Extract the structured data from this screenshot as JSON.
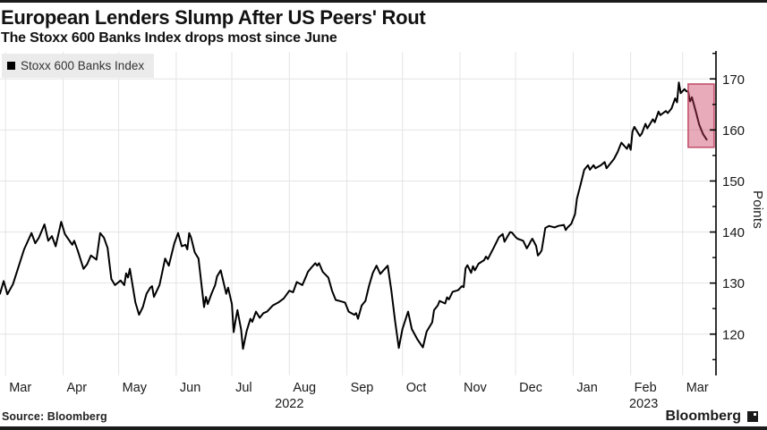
{
  "header": {
    "title": "European Lenders Slump After US Peers' Rout",
    "subtitle": "The Stoxx 600 Banks Index drops most since June"
  },
  "legend": {
    "label": "Stoxx 600 Banks Index",
    "marker_color": "#000000"
  },
  "footer": {
    "source": "Source: Bloomberg",
    "brand": "Bloomberg"
  },
  "colors": {
    "line": "#000000",
    "grid": "#e4e4e4",
    "axis": "#000000",
    "tick_text": "#1a1a1a",
    "legend_bg": "#ebebeb",
    "rule": "#1b1b1b",
    "highlight_fill": "#c8385a",
    "highlight_stroke": "#bf4a66"
  },
  "chart_data": {
    "type": "line",
    "title": "European Lenders Slump After US Peers' Rout",
    "subtitle": "The Stoxx 600 Banks Index drops most since June",
    "xlabel": "",
    "ylabel": "Points",
    "legend_position": "top-left",
    "grid": "horizontal major gridlines + monthly vertical gridlines",
    "x_range": [
      "2022-02-26",
      "2023-03-19"
    ],
    "ylim": [
      111.9,
      175.3
    ],
    "yticks_major": [
      120,
      130,
      140,
      150,
      160,
      170
    ],
    "yticks_minor": [
      115,
      125,
      135,
      145,
      155,
      165,
      175
    ],
    "x_tick_labels": [
      "Mar",
      "Apr",
      "May",
      "Jun",
      "Jul",
      "Aug",
      "Sep",
      "Oct",
      "Nov",
      "Dec",
      "Jan",
      "Feb",
      "Mar"
    ],
    "year_labels": [
      {
        "label": "2022",
        "x_date": "2022-08-01"
      },
      {
        "label": "2023",
        "x_date": "2023-02-08"
      }
    ],
    "highlight_box": {
      "x_start": "2023-03-04",
      "x_end": "2023-03-18",
      "y_top": 169.0,
      "y_bottom": 156.6,
      "fill": "#c8385a",
      "fill_opacity": 0.42,
      "stroke": "#bf4a66"
    },
    "series": [
      {
        "name": "Stoxx 600 Banks Index",
        "color": "#000000",
        "points": [
          [
            "2022-02-26",
            127.9
          ],
          [
            "2022-02-28",
            130.4
          ],
          [
            "2022-03-02",
            127.8
          ],
          [
            "2022-03-05",
            129.8
          ],
          [
            "2022-03-08",
            133.2
          ],
          [
            "2022-03-11",
            136.6
          ],
          [
            "2022-03-15",
            139.8
          ],
          [
            "2022-03-17",
            137.8
          ],
          [
            "2022-03-19",
            138.9
          ],
          [
            "2022-03-22",
            141.5
          ],
          [
            "2022-03-24",
            138.3
          ],
          [
            "2022-03-26",
            139.2
          ],
          [
            "2022-03-28",
            137.2
          ],
          [
            "2022-03-31",
            142.0
          ],
          [
            "2022-04-02",
            139.6
          ],
          [
            "2022-04-05",
            138.0
          ],
          [
            "2022-04-06",
            137.5
          ],
          [
            "2022-04-07",
            138.3
          ],
          [
            "2022-04-09",
            136.3
          ],
          [
            "2022-04-12",
            132.8
          ],
          [
            "2022-04-14",
            133.7
          ],
          [
            "2022-04-16",
            135.4
          ],
          [
            "2022-04-19",
            134.6
          ],
          [
            "2022-04-21",
            139.8
          ],
          [
            "2022-04-23",
            138.9
          ],
          [
            "2022-04-25",
            136.9
          ],
          [
            "2022-04-27",
            130.8
          ],
          [
            "2022-04-29",
            129.6
          ],
          [
            "2022-05-02",
            130.5
          ],
          [
            "2022-05-04",
            129.6
          ],
          [
            "2022-05-05",
            131.9
          ],
          [
            "2022-05-06",
            131.1
          ],
          [
            "2022-05-07",
            132.8
          ],
          [
            "2022-05-10",
            126.2
          ],
          [
            "2022-05-12",
            123.8
          ],
          [
            "2022-05-14",
            125.3
          ],
          [
            "2022-05-16",
            127.9
          ],
          [
            "2022-05-18",
            129.1
          ],
          [
            "2022-05-19",
            129.4
          ],
          [
            "2022-05-20",
            127.3
          ],
          [
            "2022-05-23",
            129.6
          ],
          [
            "2022-05-24",
            131.3
          ],
          [
            "2022-05-26",
            134.8
          ],
          [
            "2022-05-28",
            133.4
          ],
          [
            "2022-05-31",
            137.8
          ],
          [
            "2022-06-02",
            139.8
          ],
          [
            "2022-06-04",
            137.2
          ],
          [
            "2022-06-06",
            137.5
          ],
          [
            "2022-06-07",
            136.6
          ],
          [
            "2022-06-08",
            139.8
          ],
          [
            "2022-06-09",
            138.9
          ],
          [
            "2022-06-11",
            136.0
          ],
          [
            "2022-06-13",
            134.8
          ],
          [
            "2022-06-16",
            125.3
          ],
          [
            "2022-06-17",
            127.3
          ],
          [
            "2022-06-18",
            125.9
          ],
          [
            "2022-06-20",
            127.9
          ],
          [
            "2022-06-22",
            129.6
          ],
          [
            "2022-06-23",
            131.3
          ],
          [
            "2022-06-25",
            132.5
          ],
          [
            "2022-06-28",
            127.9
          ],
          [
            "2022-06-29",
            129.1
          ],
          [
            "2022-07-01",
            125.9
          ],
          [
            "2022-07-02",
            120.4
          ],
          [
            "2022-07-03",
            122.7
          ],
          [
            "2022-07-04",
            124.7
          ],
          [
            "2022-07-06",
            120.9
          ],
          [
            "2022-07-07",
            117.1
          ],
          [
            "2022-07-09",
            120.6
          ],
          [
            "2022-07-11",
            123.0
          ],
          [
            "2022-07-12",
            122.4
          ],
          [
            "2022-07-14",
            124.4
          ],
          [
            "2022-07-16",
            123.2
          ],
          [
            "2022-07-18",
            124.1
          ],
          [
            "2022-07-20",
            124.4
          ],
          [
            "2022-07-23",
            125.6
          ],
          [
            "2022-07-26",
            126.2
          ],
          [
            "2022-07-29",
            127.0
          ],
          [
            "2022-08-01",
            128.5
          ],
          [
            "2022-08-03",
            128.2
          ],
          [
            "2022-08-05",
            130.2
          ],
          [
            "2022-08-08",
            129.6
          ],
          [
            "2022-08-10",
            131.3
          ],
          [
            "2022-08-11",
            132.2
          ],
          [
            "2022-08-13",
            133.1
          ],
          [
            "2022-08-15",
            133.9
          ],
          [
            "2022-08-16",
            133.4
          ],
          [
            "2022-08-17",
            133.9
          ],
          [
            "2022-08-19",
            132.2
          ],
          [
            "2022-08-22",
            131.1
          ],
          [
            "2022-08-24",
            128.5
          ],
          [
            "2022-08-26",
            126.7
          ],
          [
            "2022-08-29",
            126.4
          ],
          [
            "2022-08-31",
            126.2
          ],
          [
            "2022-09-02",
            124.4
          ],
          [
            "2022-09-05",
            123.8
          ],
          [
            "2022-09-06",
            124.1
          ],
          [
            "2022-09-07",
            123.0
          ],
          [
            "2022-09-09",
            125.6
          ],
          [
            "2022-09-11",
            126.5
          ],
          [
            "2022-09-13",
            129.5
          ],
          [
            "2022-09-15",
            132.0
          ],
          [
            "2022-09-17",
            133.4
          ],
          [
            "2022-09-19",
            131.8
          ],
          [
            "2022-09-21",
            132.6
          ],
          [
            "2022-09-23",
            133.4
          ],
          [
            "2022-09-25",
            128.5
          ],
          [
            "2022-09-27",
            122.5
          ],
          [
            "2022-09-29",
            117.3
          ],
          [
            "2022-10-01",
            121.0
          ],
          [
            "2022-10-03",
            123.3
          ],
          [
            "2022-10-04",
            124.4
          ],
          [
            "2022-10-06",
            121.0
          ],
          [
            "2022-10-09",
            119.0
          ],
          [
            "2022-10-12",
            117.4
          ],
          [
            "2022-10-14",
            120.5
          ],
          [
            "2022-10-17",
            122.3
          ],
          [
            "2022-10-18",
            124.7
          ],
          [
            "2022-10-20",
            125.6
          ],
          [
            "2022-10-21",
            126.5
          ],
          [
            "2022-10-24",
            126.0
          ],
          [
            "2022-10-25",
            127.2
          ],
          [
            "2022-10-26",
            126.8
          ],
          [
            "2022-10-28",
            128.3
          ],
          [
            "2022-10-31",
            128.6
          ],
          [
            "2022-11-02",
            129.4
          ],
          [
            "2022-11-03",
            129.2
          ],
          [
            "2022-11-04",
            132.9
          ],
          [
            "2022-11-05",
            133.5
          ],
          [
            "2022-11-07",
            132.0
          ],
          [
            "2022-11-08",
            133.3
          ],
          [
            "2022-11-09",
            132.5
          ],
          [
            "2022-11-11",
            133.8
          ],
          [
            "2022-11-14",
            134.5
          ],
          [
            "2022-11-15",
            135.2
          ],
          [
            "2022-11-16",
            134.7
          ],
          [
            "2022-11-18",
            136.1
          ],
          [
            "2022-11-19",
            136.8
          ],
          [
            "2022-11-22",
            139.0
          ],
          [
            "2022-11-24",
            139.6
          ],
          [
            "2022-11-25",
            138.1
          ],
          [
            "2022-11-28",
            140.0
          ],
          [
            "2022-11-29",
            139.9
          ],
          [
            "2022-12-01",
            139.0
          ],
          [
            "2022-12-02",
            138.7
          ],
          [
            "2022-12-05",
            138.3
          ],
          [
            "2022-12-06",
            137.6
          ],
          [
            "2022-12-07",
            136.8
          ],
          [
            "2022-12-08",
            137.4
          ],
          [
            "2022-12-09",
            138.1
          ],
          [
            "2022-12-10",
            138.7
          ],
          [
            "2022-12-12",
            137.3
          ],
          [
            "2022-12-13",
            135.4
          ],
          [
            "2022-12-14",
            135.8
          ],
          [
            "2022-12-15",
            136.4
          ],
          [
            "2022-12-17",
            140.8
          ],
          [
            "2022-12-19",
            141.2
          ],
          [
            "2022-12-20",
            141.1
          ],
          [
            "2022-12-22",
            140.9
          ],
          [
            "2022-12-24",
            141.2
          ],
          [
            "2022-12-27",
            141.4
          ],
          [
            "2022-12-28",
            140.4
          ],
          [
            "2022-12-29",
            140.9
          ],
          [
            "2022-12-31",
            141.6
          ],
          [
            "2023-01-02",
            143.5
          ],
          [
            "2023-01-03",
            146.5
          ],
          [
            "2023-01-05",
            149.3
          ],
          [
            "2023-01-07",
            152.2
          ],
          [
            "2023-01-09",
            153.1
          ],
          [
            "2023-01-10",
            152.2
          ],
          [
            "2023-01-12",
            153.1
          ],
          [
            "2023-01-13",
            152.5
          ],
          [
            "2023-01-16",
            153.1
          ],
          [
            "2023-01-18",
            153.7
          ],
          [
            "2023-01-19",
            152.5
          ],
          [
            "2023-01-23",
            154.3
          ],
          [
            "2023-01-25",
            155.7
          ],
          [
            "2023-01-26",
            156.6
          ],
          [
            "2023-01-27",
            157.5
          ],
          [
            "2023-01-30",
            156.3
          ],
          [
            "2023-01-31",
            157.2
          ],
          [
            "2023-02-01",
            156.1
          ],
          [
            "2023-02-02",
            159.7
          ],
          [
            "2023-02-03",
            160.6
          ],
          [
            "2023-02-06",
            158.8
          ],
          [
            "2023-02-07",
            159.3
          ],
          [
            "2023-02-09",
            161.2
          ],
          [
            "2023-02-10",
            160.3
          ],
          [
            "2023-02-13",
            162.1
          ],
          [
            "2023-02-14",
            161.5
          ],
          [
            "2023-02-16",
            163.6
          ],
          [
            "2023-02-17",
            162.9
          ],
          [
            "2023-02-20",
            163.7
          ],
          [
            "2023-02-21",
            163.3
          ],
          [
            "2023-02-23",
            164.2
          ],
          [
            "2023-02-25",
            166.2
          ],
          [
            "2023-02-26",
            165.4
          ],
          [
            "2023-02-27",
            169.3
          ],
          [
            "2023-02-28",
            167.2
          ],
          [
            "2023-03-02",
            168.0
          ],
          [
            "2023-03-03",
            167.6
          ],
          [
            "2023-03-04",
            167.5
          ],
          [
            "2023-03-05",
            165.6
          ],
          [
            "2023-03-06",
            166.4
          ],
          [
            "2023-03-08",
            163.8
          ],
          [
            "2023-03-10",
            161.0
          ],
          [
            "2023-03-12",
            159.2
          ],
          [
            "2023-03-14",
            158.1
          ]
        ]
      }
    ]
  }
}
